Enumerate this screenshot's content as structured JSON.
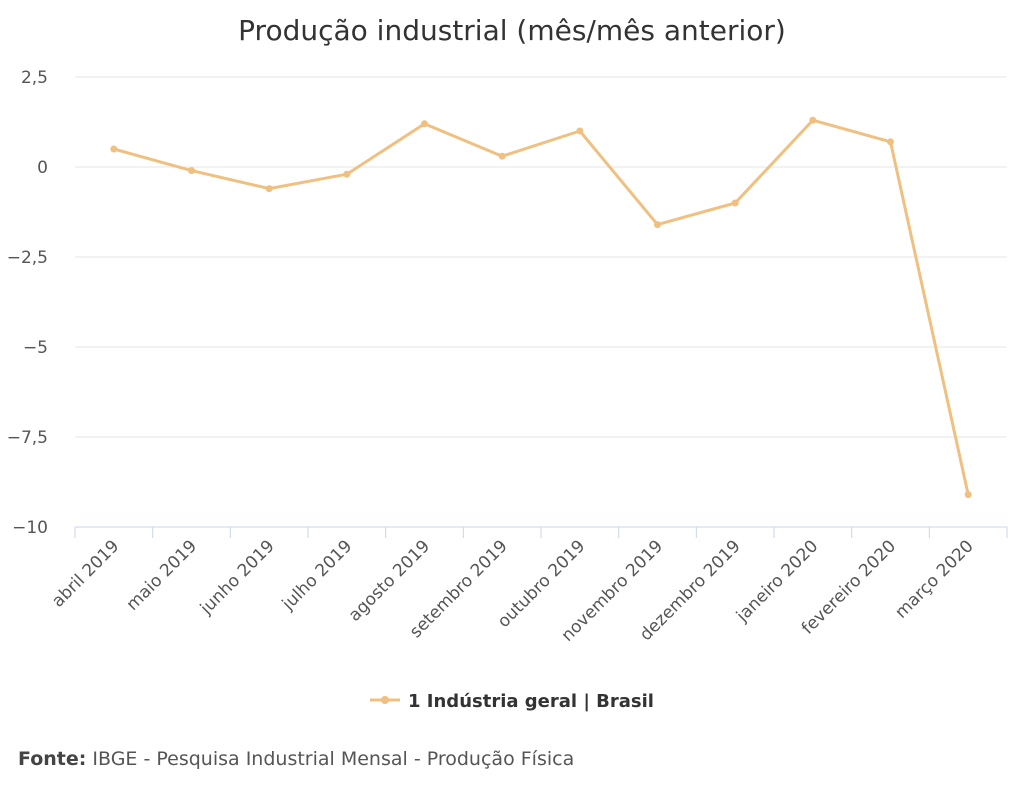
{
  "chart_data": {
    "type": "line",
    "title": "Produção industrial (mês/mês anterior)",
    "categories": [
      "abril 2019",
      "maio 2019",
      "junho 2019",
      "julho 2019",
      "agosto 2019",
      "setembro 2019",
      "outubro 2019",
      "novembro 2019",
      "dezembro 2019",
      "janeiro 2020",
      "fevereiro 2020",
      "março 2020"
    ],
    "series": [
      {
        "name": "1 Indústria geral | Brasil",
        "color": "#f0c080",
        "values": [
          0.5,
          -0.1,
          -0.6,
          -0.2,
          1.2,
          0.3,
          1.0,
          -1.6,
          -1.0,
          1.3,
          0.7,
          -9.1
        ]
      }
    ],
    "ylim": [
      -10,
      2.5
    ],
    "yticks": [
      2.5,
      0,
      -2.5,
      -5,
      -7.5,
      -10
    ],
    "ytick_labels": [
      "2,5",
      "0",
      "−2,5",
      "−5",
      "−7,5",
      "−10"
    ],
    "grid": true,
    "legend_position": "bottom"
  },
  "source": {
    "label": "Fonte:",
    "text": "IBGE - Pesquisa Industrial Mensal - Produção Física"
  }
}
